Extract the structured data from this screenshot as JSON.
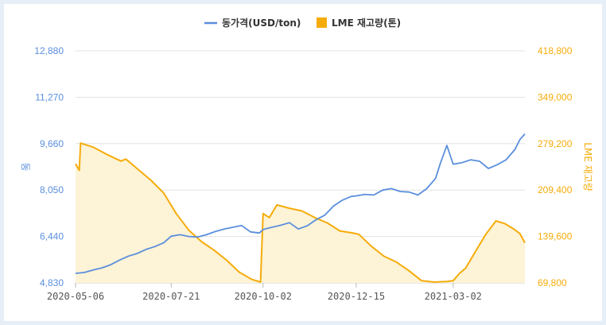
{
  "chart_data": {
    "type": "line",
    "title": "",
    "legend": {
      "placement": "top-center",
      "items": [
        {
          "label": "동가격(USD/ton)",
          "color": "#5b8fdc",
          "marker": "line"
        },
        {
          "label": "LME 재고량(톤)",
          "color": "#f5ac0a",
          "marker": "square"
        }
      ]
    },
    "left_axis": {
      "label": "동",
      "color": "#5b8fdc",
      "ticks": [
        "4,830",
        "6,440",
        "8,050",
        "9,660",
        "11,270",
        "12,880"
      ],
      "range": [
        4830,
        12880
      ]
    },
    "right_axis": {
      "label": "LME 재고량",
      "color": "#f5ac0a",
      "ticks": [
        "69,800",
        "139,600",
        "209,400",
        "279,200",
        "349,000",
        "418,800"
      ],
      "range": [
        69800,
        418800
      ]
    },
    "x_ticks": [
      "2020-05-06",
      "2020-07-21",
      "2020-10-02",
      "2020-12-15",
      "2021-03-02"
    ],
    "x_range": [
      "2020-05-06",
      "2021-04-28"
    ],
    "grid": true,
    "series": [
      {
        "name": "동가격(USD/ton)",
        "axis": "left",
        "color": "#5b8fdc",
        "style": "line",
        "points": [
          [
            "2020-05-06",
            5160
          ],
          [
            "2020-05-13",
            5190
          ],
          [
            "2020-05-20",
            5280
          ],
          [
            "2020-05-27",
            5350
          ],
          [
            "2020-06-03",
            5460
          ],
          [
            "2020-06-10",
            5620
          ],
          [
            "2020-06-17",
            5760
          ],
          [
            "2020-06-24",
            5850
          ],
          [
            "2020-07-01",
            5990
          ],
          [
            "2020-07-08",
            6090
          ],
          [
            "2020-07-15",
            6220
          ],
          [
            "2020-07-21",
            6450
          ],
          [
            "2020-07-28",
            6500
          ],
          [
            "2020-08-04",
            6440
          ],
          [
            "2020-08-11",
            6420
          ],
          [
            "2020-08-18",
            6500
          ],
          [
            "2020-08-25",
            6610
          ],
          [
            "2020-09-01",
            6700
          ],
          [
            "2020-09-08",
            6760
          ],
          [
            "2020-09-15",
            6820
          ],
          [
            "2020-09-22",
            6600
          ],
          [
            "2020-09-29",
            6560
          ],
          [
            "2020-10-02",
            6680
          ],
          [
            "2020-10-09",
            6760
          ],
          [
            "2020-10-16",
            6830
          ],
          [
            "2020-10-23",
            6920
          ],
          [
            "2020-10-30",
            6700
          ],
          [
            "2020-11-06",
            6810
          ],
          [
            "2020-11-13",
            7020
          ],
          [
            "2020-11-20",
            7180
          ],
          [
            "2020-11-27",
            7500
          ],
          [
            "2020-12-04",
            7700
          ],
          [
            "2020-12-11",
            7830
          ],
          [
            "2020-12-15",
            7850
          ],
          [
            "2020-12-22",
            7900
          ],
          [
            "2020-12-29",
            7880
          ],
          [
            "2021-01-05",
            8050
          ],
          [
            "2021-01-12",
            8100
          ],
          [
            "2021-01-19",
            8000
          ],
          [
            "2021-01-26",
            7980
          ],
          [
            "2021-02-02",
            7880
          ],
          [
            "2021-02-09",
            8100
          ],
          [
            "2021-02-16",
            8450
          ],
          [
            "2021-02-20",
            9000
          ],
          [
            "2021-02-25",
            9600
          ],
          [
            "2021-03-02",
            8950
          ],
          [
            "2021-03-09",
            9000
          ],
          [
            "2021-03-16",
            9100
          ],
          [
            "2021-03-23",
            9050
          ],
          [
            "2021-03-30",
            8800
          ],
          [
            "2021-04-06",
            8930
          ],
          [
            "2021-04-13",
            9100
          ],
          [
            "2021-04-20",
            9450
          ],
          [
            "2021-04-24",
            9800
          ],
          [
            "2021-04-28",
            10000
          ]
        ]
      },
      {
        "name": "LME 재고량(톤)",
        "axis": "right",
        "color": "#f5ac0a",
        "fill": "#fdf3d6",
        "style": "area",
        "points": [
          [
            "2020-05-06",
            249000
          ],
          [
            "2020-05-09",
            239000
          ],
          [
            "2020-05-10",
            280000
          ],
          [
            "2020-05-20",
            274000
          ],
          [
            "2020-06-01",
            262000
          ],
          [
            "2020-06-11",
            253000
          ],
          [
            "2020-06-15",
            256000
          ],
          [
            "2020-06-25",
            240000
          ],
          [
            "2020-07-05",
            224000
          ],
          [
            "2020-07-15",
            205000
          ],
          [
            "2020-07-25",
            174000
          ],
          [
            "2020-08-04",
            149000
          ],
          [
            "2020-08-14",
            132000
          ],
          [
            "2020-08-24",
            119000
          ],
          [
            "2020-09-03",
            104000
          ],
          [
            "2020-09-13",
            86000
          ],
          [
            "2020-09-23",
            75000
          ],
          [
            "2020-09-30",
            71000
          ],
          [
            "2020-10-02",
            174000
          ],
          [
            "2020-10-07",
            168000
          ],
          [
            "2020-10-13",
            187000
          ],
          [
            "2020-10-23",
            182000
          ],
          [
            "2020-11-02",
            178000
          ],
          [
            "2020-11-12",
            168000
          ],
          [
            "2020-11-22",
            160000
          ],
          [
            "2020-12-02",
            148000
          ],
          [
            "2020-12-12",
            145000
          ],
          [
            "2020-12-17",
            143000
          ],
          [
            "2020-12-27",
            125000
          ],
          [
            "2021-01-06",
            110000
          ],
          [
            "2021-01-16",
            101000
          ],
          [
            "2021-01-26",
            88000
          ],
          [
            "2021-02-05",
            73000
          ],
          [
            "2021-02-15",
            71000
          ],
          [
            "2021-02-25",
            72000
          ],
          [
            "2021-03-02",
            73000
          ],
          [
            "2021-03-07",
            84000
          ],
          [
            "2021-03-12",
            92000
          ],
          [
            "2021-03-20",
            118000
          ],
          [
            "2021-03-28",
            143000
          ],
          [
            "2021-04-05",
            163000
          ],
          [
            "2021-04-12",
            159000
          ],
          [
            "2021-04-19",
            151000
          ],
          [
            "2021-04-24",
            144000
          ],
          [
            "2021-04-28",
            130000
          ]
        ]
      }
    ]
  }
}
